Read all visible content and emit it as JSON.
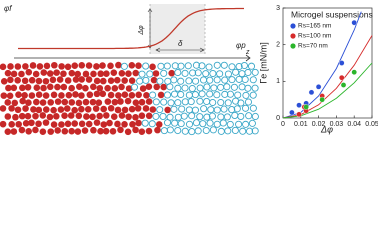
{
  "diagram": {
    "phi_f": "φf",
    "phi_p": "φp",
    "delta_phi": "Δφ",
    "delta": "δ",
    "z": "z"
  },
  "chart_data": {
    "type": "scatter",
    "legend_title": "Microgel suspensions",
    "xlabel": "Δφ",
    "ylabel": "Γe [mN/m]",
    "xlim": [
      0,
      0.05
    ],
    "ylim": [
      0,
      3
    ],
    "xticks": [
      0,
      0.01,
      0.02,
      0.03,
      0.04,
      0.05
    ],
    "yticks": [
      0,
      1,
      2,
      3
    ],
    "legend": "upper left",
    "series": [
      {
        "name": "Rs=165 nm",
        "color": "#2b4fd6",
        "x": [
          0.005,
          0.009,
          0.013,
          0.016,
          0.02,
          0.033,
          0.04
        ],
        "values": [
          0.15,
          0.35,
          0.4,
          0.7,
          0.85,
          1.5,
          2.6
        ]
      },
      {
        "name": "Rs=100 nm",
        "color": "#d62b2b",
        "x": [
          0.009,
          0.012,
          0.013,
          0.022,
          0.033
        ],
        "values": [
          0.1,
          0.3,
          0.2,
          0.6,
          1.1
        ]
      },
      {
        "name": "Rs=70 nm",
        "color": "#2bb52b",
        "x": [
          0.013,
          0.022,
          0.034,
          0.04
        ],
        "values": [
          0.3,
          0.5,
          0.9,
          1.25
        ]
      }
    ],
    "fits": [
      {
        "color": "#2b4fd6",
        "x": [
          0,
          0.01,
          0.02,
          0.03,
          0.04,
          0.044
        ],
        "values": [
          0,
          0.15,
          0.6,
          1.35,
          2.4,
          2.9
        ]
      },
      {
        "color": "#d62b2b",
        "x": [
          0,
          0.01,
          0.02,
          0.03,
          0.04,
          0.05
        ],
        "values": [
          0,
          0.09,
          0.36,
          0.81,
          1.44,
          2.25
        ]
      },
      {
        "color": "#2bb52b",
        "x": [
          0,
          0.01,
          0.02,
          0.03,
          0.04,
          0.05
        ],
        "values": [
          0,
          0.06,
          0.24,
          0.54,
          0.96,
          1.5
        ]
      }
    ]
  }
}
